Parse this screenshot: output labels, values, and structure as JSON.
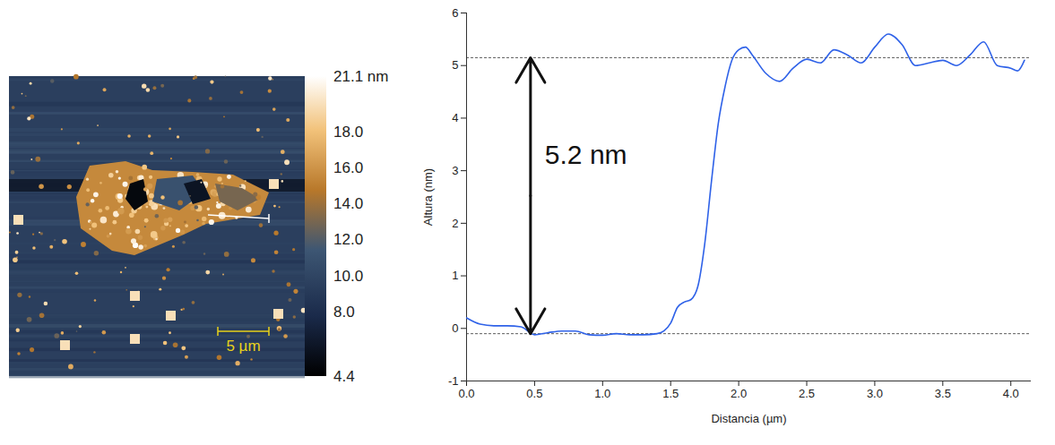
{
  "chart_data": [
    {
      "type": "image",
      "colorbar": {
        "range": [
          4.4,
          21.1
        ],
        "ticks": [
          {
            "value": 21.1,
            "label": "21.1 nm"
          },
          {
            "value": 18,
            "label": "18.0"
          },
          {
            "value": 16,
            "label": "16.0"
          },
          {
            "value": 14,
            "label": "14.0"
          },
          {
            "value": 12,
            "label": "12.0"
          },
          {
            "value": 10,
            "label": "10.0"
          },
          {
            "value": 8,
            "label": "8.0"
          },
          4.4
        ]
      },
      "scale_bar": {
        "value": 5,
        "label": "5 µm"
      }
    },
    {
      "type": "line",
      "x_label": "Distancia (µm)",
      "y_label": "Altura (nm)",
      "color": "#2f62e8",
      "x": [
        0.0,
        0.1,
        0.2,
        0.3,
        0.4,
        0.5,
        0.6,
        0.7,
        0.8,
        0.9,
        1.0,
        1.1,
        1.2,
        1.3,
        1.4,
        1.45,
        1.5,
        1.55,
        1.6,
        1.65,
        1.7,
        1.75,
        1.8,
        1.85,
        1.9,
        1.95,
        2.0,
        2.05,
        2.1,
        2.2,
        2.3,
        2.4,
        2.5,
        2.6,
        2.7,
        2.8,
        2.9,
        3.0,
        3.1,
        3.2,
        3.3,
        3.4,
        3.5,
        3.6,
        3.7,
        3.8,
        3.9,
        4.0,
        4.05,
        4.1
      ],
      "values": [
        0.2,
        0.08,
        0.05,
        0.05,
        0.03,
        -0.12,
        -0.08,
        -0.05,
        -0.05,
        -0.12,
        -0.13,
        -0.1,
        -0.12,
        -0.12,
        -0.1,
        -0.05,
        0.1,
        0.4,
        0.5,
        0.55,
        0.8,
        1.6,
        2.8,
        3.9,
        4.6,
        5.1,
        5.3,
        5.35,
        5.2,
        4.85,
        4.7,
        4.95,
        5.12,
        5.05,
        5.3,
        5.2,
        5.05,
        5.35,
        5.6,
        5.4,
        5.0,
        5.05,
        5.1,
        5.0,
        5.2,
        5.45,
        5.0,
        4.95,
        4.9,
        5.1
      ],
      "xlim": [
        0,
        4.15
      ],
      "xticks": [
        {
          "value": 0,
          "label": "0.0"
        },
        {
          "value": 0.5,
          "label": "0.5"
        },
        {
          "value": 1,
          "label": "1.0"
        },
        {
          "value": 1.5,
          "label": "1.5"
        },
        {
          "value": 2,
          "label": "2.0"
        },
        {
          "value": 2.5,
          "label": "2.5"
        },
        {
          "value": 3,
          "label": "3.0"
        },
        {
          "value": 3.5,
          "label": "3.5"
        },
        {
          "value": 4,
          "label": "4.0"
        }
      ],
      "ylim": [
        -1,
        6
      ],
      "yticks": [
        -1,
        0,
        1,
        2,
        3,
        4,
        5,
        6
      ],
      "reference_lines": {
        "values": [
          5.15,
          -0.1
        ],
        "line_style": "dashed"
      },
      "annotation": {
        "text": "5.2 nm",
        "x": 0.47,
        "y_from": -0.1,
        "y_to": 5.15
      }
    }
  ]
}
